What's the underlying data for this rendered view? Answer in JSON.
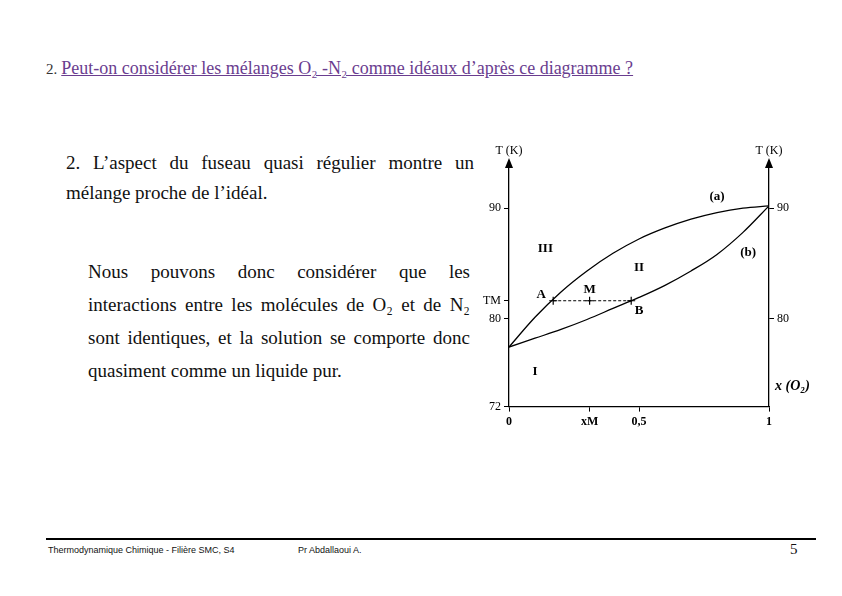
{
  "slide": {
    "title": {
      "number": "2.",
      "text": "Peut-on considérer les mélanges O₂ -N₂ comme idéaux d’après ce diagramme ?"
    },
    "paragraphs": [
      "2.  L’aspect du fuseau quasi régulier montre un mélange proche de l’idéal.",
      "Nous pouvons donc considérer que les interactions entre les molécules de O₂ et de N₂ sont identiques, et la solution se comporte donc quasiment comme un liquide pur."
    ],
    "footer": {
      "course": "Thermodynamique Chimique - Filière SMC, S4",
      "author": "Pr Abdallaoui A.",
      "page": "5"
    }
  },
  "chart_data": {
    "type": "line",
    "ylabel": "T (K)",
    "xlabel": "x (O₂)",
    "xlim": [
      0,
      1
    ],
    "xticks": [
      0,
      {
        "value": 0.31,
        "label": "xM"
      },
      {
        "value": 0.5,
        "label": "0,5"
      },
      1
    ],
    "ylim": [
      72,
      94
    ],
    "yticks": [
      72,
      80,
      {
        "value": 81.6,
        "label": "TM"
      },
      90
    ],
    "y2lim": [
      72,
      94
    ],
    "y2ticks": [
      80,
      90
    ],
    "grid": false,
    "series": [
      {
        "name": "(a)",
        "color": "#000000",
        "x": [
          0,
          0.1,
          0.2,
          0.3,
          0.4,
          0.5,
          0.6,
          0.7,
          0.8,
          0.9,
          1
        ],
        "values": [
          77.4,
          80.1,
          82.4,
          84.3,
          85.9,
          87.2,
          88.2,
          89.0,
          89.6,
          90.0,
          90.2
        ]
      },
      {
        "name": "(b)",
        "color": "#000000",
        "x": [
          0,
          0.1,
          0.2,
          0.3,
          0.4,
          0.5,
          0.6,
          0.7,
          0.8,
          0.9,
          1
        ],
        "values": [
          77.4,
          78.2,
          79.0,
          79.9,
          80.9,
          81.9,
          83.0,
          84.3,
          85.8,
          87.8,
          90.2
        ]
      }
    ],
    "points": {
      "line_style": "dashed",
      "marker": "cross",
      "color": "#000000",
      "labels": [
        "A",
        "M",
        "B"
      ],
      "x": [
        0.17,
        0.31,
        0.47
      ],
      "values": [
        81.6,
        81.6,
        81.6
      ]
    },
    "regions": [
      "I",
      "II",
      "III"
    ]
  }
}
